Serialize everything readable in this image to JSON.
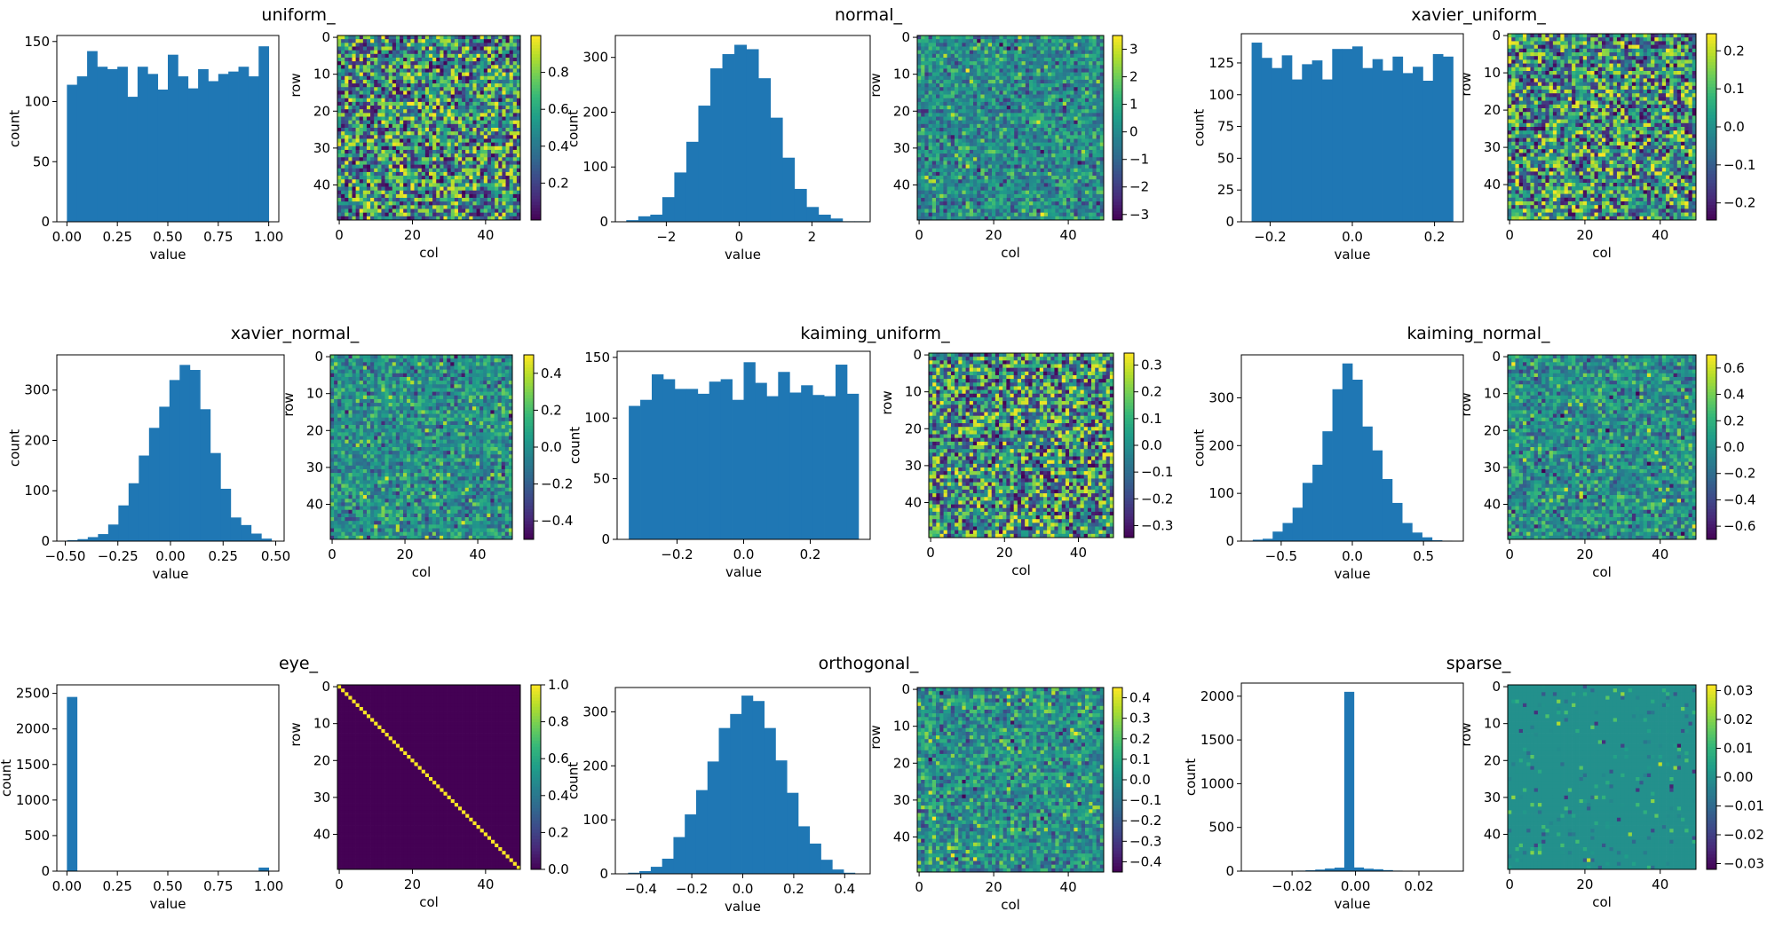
{
  "figure_title": "",
  "chart_data": [
    {
      "title": "uniform_",
      "histogram": {
        "type": "bar",
        "xlabel": "value",
        "ylabel": "count",
        "xlim": [
          -0.05,
          1.05
        ],
        "ylim": [
          0,
          155
        ],
        "xticks": [
          0.0,
          0.25,
          0.5,
          0.75,
          1.0
        ],
        "xtick_labels": [
          "0.00",
          "0.25",
          "0.50",
          "0.75",
          "1.00"
        ],
        "yticks": [
          0,
          50,
          100,
          150
        ],
        "ytick_labels": [
          "0",
          "50",
          "100",
          "150"
        ],
        "bin_start": 0.0,
        "bin_end": 1.0,
        "values": [
          114,
          121,
          142,
          129,
          127,
          129,
          104,
          129,
          123,
          110,
          139,
          121,
          111,
          127,
          117,
          123,
          125,
          129,
          121,
          146
        ]
      },
      "heatmap": {
        "type": "heatmap",
        "xlabel": "col",
        "ylabel": "row",
        "rows": 50,
        "cols": 50,
        "pattern": "uniform",
        "seed": 11,
        "xticks": [
          0,
          20,
          40
        ],
        "xtick_labels": [
          "0",
          "20",
          "40"
        ],
        "yticks": [
          0,
          10,
          20,
          30,
          40
        ],
        "ytick_labels": [
          "0",
          "10",
          "20",
          "30",
          "40"
        ],
        "vmin": 0.0,
        "vmax": 1.0,
        "cbar_ticks": [
          0.2,
          0.4,
          0.6,
          0.8
        ],
        "cbar_labels": [
          "0.2",
          "0.4",
          "0.6",
          "0.8"
        ]
      }
    },
    {
      "title": "normal_",
      "histogram": {
        "type": "bar",
        "xlabel": "value",
        "ylabel": "count",
        "xlim": [
          -3.4,
          3.6
        ],
        "ylim": [
          0,
          340
        ],
        "xticks": [
          -2,
          0,
          2
        ],
        "xtick_labels": [
          "−2",
          "0",
          "2"
        ],
        "yticks": [
          0,
          100,
          200,
          300
        ],
        "ytick_labels": [
          "0",
          "100",
          "200",
          "300"
        ],
        "bin_start": -3.1,
        "bin_end": 3.5,
        "values": [
          3,
          10,
          13,
          45,
          90,
          146,
          212,
          280,
          306,
          323,
          315,
          262,
          190,
          117,
          60,
          27,
          13,
          6,
          1,
          1
        ]
      },
      "heatmap": {
        "type": "heatmap",
        "xlabel": "col",
        "ylabel": "row",
        "rows": 50,
        "cols": 50,
        "pattern": "normal",
        "seed": 23,
        "xticks": [
          0,
          20,
          40
        ],
        "xtick_labels": [
          "0",
          "20",
          "40"
        ],
        "yticks": [
          0,
          10,
          20,
          30,
          40
        ],
        "ytick_labels": [
          "0",
          "10",
          "20",
          "30",
          "40"
        ],
        "vmin": -3.2,
        "vmax": 3.5,
        "cbar_ticks": [
          -3,
          -2,
          -1,
          0,
          1,
          2,
          3
        ],
        "cbar_labels": [
          "−3",
          "−2",
          "−1",
          "0",
          "1",
          "2",
          "3"
        ]
      }
    },
    {
      "title": "xavier_uniform_",
      "histogram": {
        "type": "bar",
        "xlabel": "value",
        "ylabel": "count",
        "xlim": [
          -0.27,
          0.27
        ],
        "ylim": [
          0,
          148
        ],
        "xticks": [
          -0.2,
          0.0,
          0.2
        ],
        "xtick_labels": [
          "−0.2",
          "0.0",
          "0.2"
        ],
        "yticks": [
          0,
          25,
          50,
          75,
          100,
          125
        ],
        "ytick_labels": [
          "0",
          "25",
          "50",
          "75",
          "100",
          "125"
        ],
        "bin_start": -0.245,
        "bin_end": 0.245,
        "values": [
          141,
          129,
          121,
          131,
          112,
          124,
          127,
          112,
          136,
          136,
          138,
          121,
          128,
          119,
          130,
          117,
          122,
          111,
          132,
          130
        ]
      },
      "heatmap": {
        "type": "heatmap",
        "xlabel": "col",
        "ylabel": "row",
        "rows": 50,
        "cols": 50,
        "pattern": "uniform",
        "seed": 37,
        "xticks": [
          0,
          20,
          40
        ],
        "xtick_labels": [
          "0",
          "20",
          "40"
        ],
        "yticks": [
          0,
          10,
          20,
          30,
          40
        ],
        "ytick_labels": [
          "0",
          "10",
          "20",
          "30",
          "40"
        ],
        "vmin": -0.245,
        "vmax": 0.245,
        "cbar_ticks": [
          -0.2,
          -0.1,
          0.0,
          0.1,
          0.2
        ],
        "cbar_labels": [
          "−0.2",
          "−0.1",
          "0.0",
          "0.1",
          "0.2"
        ]
      }
    },
    {
      "title": "xavier_normal_",
      "histogram": {
        "type": "bar",
        "xlabel": "value",
        "ylabel": "count",
        "xlim": [
          -0.54,
          0.54
        ],
        "ylim": [
          0,
          370
        ],
        "xticks": [
          -0.5,
          -0.25,
          0.0,
          0.25,
          0.5
        ],
        "xtick_labels": [
          "−0.50",
          "−0.25",
          "0.00",
          "0.25",
          "0.50"
        ],
        "yticks": [
          0,
          100,
          200,
          300
        ],
        "ytick_labels": [
          "0",
          "100",
          "200",
          "300"
        ],
        "bin_start": -0.49,
        "bin_end": 0.48,
        "values": [
          2,
          4,
          8,
          14,
          33,
          71,
          115,
          170,
          225,
          267,
          320,
          350,
          340,
          262,
          175,
          104,
          47,
          32,
          15,
          5
        ]
      },
      "heatmap": {
        "type": "heatmap",
        "xlabel": "col",
        "ylabel": "row",
        "rows": 50,
        "cols": 50,
        "pattern": "normal",
        "seed": 41,
        "xticks": [
          0,
          20,
          40
        ],
        "xtick_labels": [
          "0",
          "20",
          "40"
        ],
        "yticks": [
          0,
          10,
          20,
          30,
          40
        ],
        "ytick_labels": [
          "0",
          "10",
          "20",
          "30",
          "40"
        ],
        "vmin": -0.5,
        "vmax": 0.5,
        "cbar_ticks": [
          -0.4,
          -0.2,
          0.0,
          0.2,
          0.4
        ],
        "cbar_labels": [
          "−0.4",
          "−0.2",
          "0.0",
          "0.2",
          "0.4"
        ]
      }
    },
    {
      "title": "kaiming_uniform_",
      "histogram": {
        "type": "bar",
        "xlabel": "value",
        "ylabel": "count",
        "xlim": [
          -0.38,
          0.38
        ],
        "ylim": [
          0,
          155
        ],
        "xticks": [
          -0.2,
          0.0,
          0.2
        ],
        "xtick_labels": [
          "−0.2",
          "0.0",
          "0.2"
        ],
        "yticks": [
          0,
          50,
          100,
          150
        ],
        "ytick_labels": [
          "0",
          "50",
          "100",
          "150"
        ],
        "bin_start": -0.345,
        "bin_end": 0.345,
        "values": [
          110,
          115,
          136,
          132,
          124,
          124,
          120,
          130,
          132,
          115,
          146,
          129,
          118,
          138,
          121,
          127,
          119,
          118,
          144,
          120
        ]
      },
      "heatmap": {
        "type": "heatmap",
        "xlabel": "col",
        "ylabel": "row",
        "rows": 50,
        "cols": 50,
        "pattern": "uniform",
        "seed": 53,
        "xticks": [
          0,
          20,
          40
        ],
        "xtick_labels": [
          "0",
          "20",
          "40"
        ],
        "yticks": [
          0,
          10,
          20,
          30,
          40
        ],
        "ytick_labels": [
          "0",
          "10",
          "20",
          "30",
          "40"
        ],
        "vmin": -0.345,
        "vmax": 0.345,
        "cbar_ticks": [
          -0.3,
          -0.2,
          -0.1,
          0.0,
          0.1,
          0.2,
          0.3
        ],
        "cbar_labels": [
          "−0.3",
          "−0.2",
          "−0.1",
          "0.0",
          "0.1",
          "0.2",
          "0.3"
        ]
      }
    },
    {
      "title": "kaiming_normal_",
      "histogram": {
        "type": "bar",
        "xlabel": "value",
        "ylabel": "count",
        "xlim": [
          -0.78,
          0.78
        ],
        "ylim": [
          0,
          390
        ],
        "xticks": [
          -0.5,
          0.0,
          0.5
        ],
        "xtick_labels": [
          "−0.5",
          "0.0",
          "0.5"
        ],
        "yticks": [
          0,
          100,
          200,
          300
        ],
        "ytick_labels": [
          "0",
          "100",
          "200",
          "300"
        ],
        "bin_start": -0.7,
        "bin_end": 0.7,
        "values": [
          3,
          5,
          20,
          38,
          70,
          122,
          160,
          230,
          318,
          372,
          338,
          240,
          190,
          130,
          80,
          38,
          18,
          8,
          2,
          1
        ]
      },
      "heatmap": {
        "type": "heatmap",
        "xlabel": "col",
        "ylabel": "row",
        "rows": 50,
        "cols": 50,
        "pattern": "normal",
        "seed": 67,
        "xticks": [
          0,
          20,
          40
        ],
        "xtick_labels": [
          "0",
          "20",
          "40"
        ],
        "yticks": [
          0,
          10,
          20,
          30,
          40
        ],
        "ytick_labels": [
          "0",
          "10",
          "20",
          "30",
          "40"
        ],
        "vmin": -0.7,
        "vmax": 0.7,
        "cbar_ticks": [
          -0.6,
          -0.4,
          -0.2,
          0.0,
          0.2,
          0.4,
          0.6
        ],
        "cbar_labels": [
          "−0.6",
          "−0.4",
          "−0.2",
          "0.0",
          "0.2",
          "0.4",
          "0.6"
        ]
      }
    },
    {
      "title": "eye_",
      "histogram": {
        "type": "bar",
        "xlabel": "value",
        "ylabel": "count",
        "xlim": [
          -0.05,
          1.05
        ],
        "ylim": [
          0,
          2620
        ],
        "xticks": [
          0.0,
          0.25,
          0.5,
          0.75,
          1.0
        ],
        "xtick_labels": [
          "0.00",
          "0.25",
          "0.50",
          "0.75",
          "1.00"
        ],
        "yticks": [
          0,
          500,
          1000,
          1500,
          2000,
          2500
        ],
        "ytick_labels": [
          "0",
          "500",
          "1000",
          "1500",
          "2000",
          "2500"
        ],
        "bin_start": 0.0,
        "bin_end": 1.0,
        "values": [
          2450,
          0,
          0,
          0,
          0,
          0,
          0,
          0,
          0,
          0,
          0,
          0,
          0,
          0,
          0,
          0,
          0,
          0,
          0,
          50
        ]
      },
      "heatmap": {
        "type": "heatmap",
        "xlabel": "col",
        "ylabel": "row",
        "rows": 50,
        "cols": 50,
        "pattern": "identity",
        "seed": 0,
        "xticks": [
          0,
          20,
          40
        ],
        "xtick_labels": [
          "0",
          "20",
          "40"
        ],
        "yticks": [
          0,
          10,
          20,
          30,
          40
        ],
        "ytick_labels": [
          "0",
          "10",
          "20",
          "30",
          "40"
        ],
        "vmin": 0.0,
        "vmax": 1.0,
        "cbar_ticks": [
          0.0,
          0.2,
          0.4,
          0.6,
          0.8,
          1.0
        ],
        "cbar_labels": [
          "0.0",
          "0.2",
          "0.4",
          "0.6",
          "0.8",
          "1.0"
        ]
      }
    },
    {
      "title": "orthogonal_",
      "histogram": {
        "type": "bar",
        "xlabel": "value",
        "ylabel": "count",
        "xlim": [
          -0.5,
          0.5
        ],
        "ylim": [
          0,
          345
        ],
        "xticks": [
          -0.4,
          -0.2,
          0.0,
          0.2,
          0.4
        ],
        "xtick_labels": [
          "−0.4",
          "−0.2",
          "0.0",
          "0.2",
          "0.4"
        ],
        "yticks": [
          0,
          100,
          200,
          300
        ],
        "ytick_labels": [
          "0",
          "100",
          "200",
          "300"
        ],
        "bin_start": -0.45,
        "bin_end": 0.44,
        "values": [
          2,
          5,
          13,
          28,
          68,
          110,
          155,
          208,
          270,
          296,
          330,
          320,
          270,
          210,
          150,
          88,
          56,
          26,
          8,
          2
        ]
      },
      "heatmap": {
        "type": "heatmap",
        "xlabel": "col",
        "ylabel": "row",
        "rows": 50,
        "cols": 50,
        "pattern": "normal",
        "seed": 79,
        "xticks": [
          0,
          20,
          40
        ],
        "xtick_labels": [
          "0",
          "20",
          "40"
        ],
        "yticks": [
          0,
          10,
          20,
          30,
          40
        ],
        "ytick_labels": [
          "0",
          "10",
          "20",
          "30",
          "40"
        ],
        "vmin": -0.45,
        "vmax": 0.45,
        "cbar_ticks": [
          -0.4,
          -0.3,
          -0.2,
          -0.1,
          0.0,
          0.1,
          0.2,
          0.3,
          0.4
        ],
        "cbar_labels": [
          "−0.4",
          "−0.3",
          "−0.2",
          "−0.1",
          "0.0",
          "0.1",
          "0.2",
          "0.3",
          "0.4"
        ]
      }
    },
    {
      "title": "sparse_",
      "histogram": {
        "type": "bar",
        "xlabel": "value",
        "ylabel": "count",
        "xlim": [
          -0.036,
          0.034
        ],
        "ylim": [
          0,
          2150
        ],
        "xticks": [
          -0.02,
          0.0,
          0.02
        ],
        "xtick_labels": [
          "−0.02",
          "0.00",
          "0.02"
        ],
        "yticks": [
          0,
          500,
          1000,
          1500,
          2000
        ],
        "ytick_labels": [
          "0",
          "500",
          "1000",
          "1500",
          "2000"
        ],
        "bin_start": -0.031,
        "bin_end": 0.03,
        "values": [
          1,
          2,
          3,
          5,
          6,
          10,
          18,
          30,
          40,
          2050,
          42,
          28,
          22,
          12,
          6,
          4,
          2,
          1,
          1,
          1
        ]
      },
      "heatmap": {
        "type": "heatmap",
        "xlabel": "col",
        "ylabel": "row",
        "rows": 50,
        "cols": 50,
        "pattern": "sparse",
        "seed": 97,
        "xticks": [
          0,
          20,
          40
        ],
        "xtick_labels": [
          "0",
          "20",
          "40"
        ],
        "yticks": [
          0,
          10,
          20,
          30,
          40
        ],
        "ytick_labels": [
          "0",
          "10",
          "20",
          "30",
          "40"
        ],
        "vmin": -0.032,
        "vmax": 0.032,
        "cbar_ticks": [
          -0.03,
          -0.02,
          -0.01,
          0.0,
          0.01,
          0.02,
          0.03
        ],
        "cbar_labels": [
          "−0.03",
          "−0.02",
          "−0.01",
          "0.00",
          "0.01",
          "0.02",
          "0.03"
        ]
      }
    }
  ],
  "colors": {
    "bar": "#1f77b4",
    "axis": "#000000",
    "viridis": [
      "#440154",
      "#482878",
      "#3e4989",
      "#31688e",
      "#26828e",
      "#1f9e89",
      "#35b779",
      "#6ece58",
      "#b5de2b",
      "#fde725"
    ]
  }
}
